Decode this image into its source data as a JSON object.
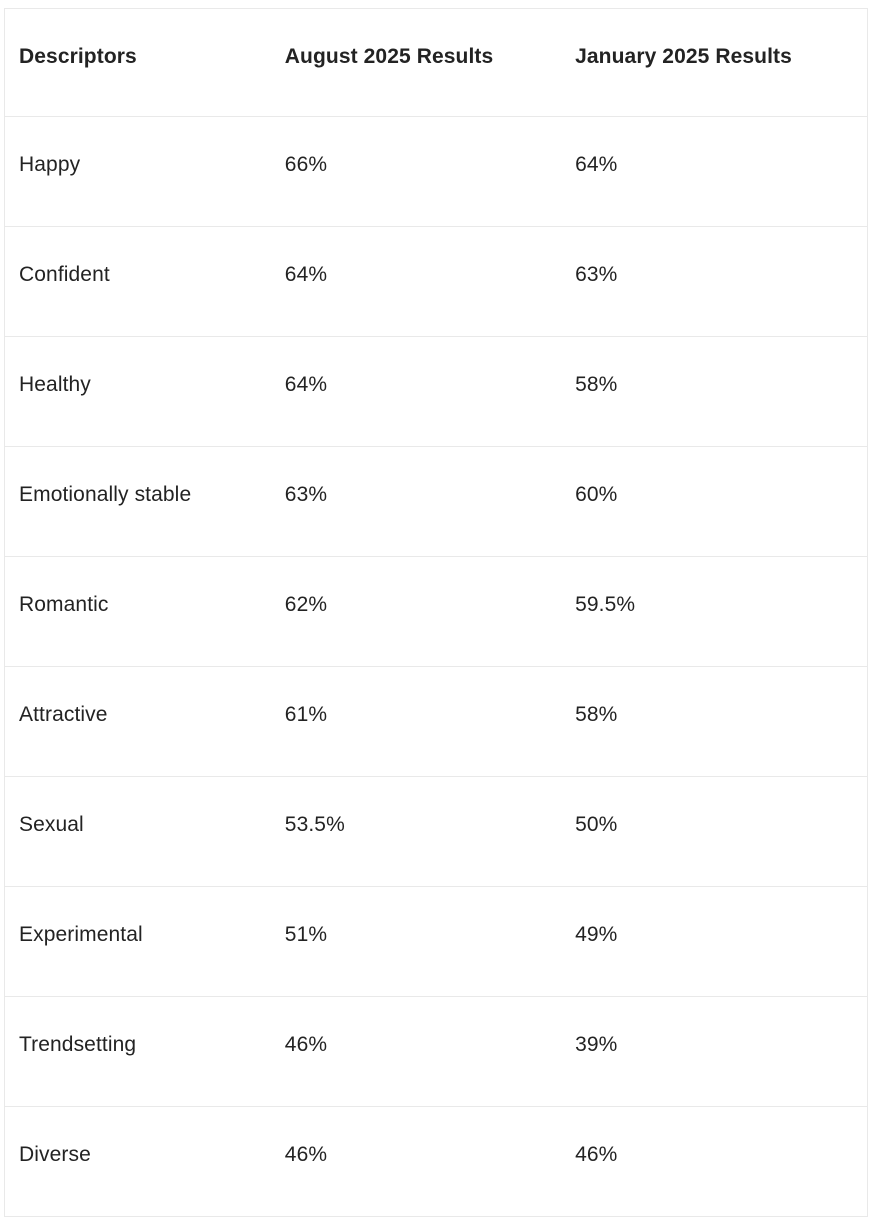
{
  "colors": {
    "text": "#232323",
    "border": "#e9e9e9",
    "background": "#ffffff"
  },
  "table": {
    "columns": [
      "Descriptors",
      "August 2025 Results",
      "January 2025 Results"
    ],
    "rows": [
      [
        "Happy",
        "66%",
        "64%"
      ],
      [
        "Confident",
        "64%",
        "63%"
      ],
      [
        "Healthy",
        "64%",
        "58%"
      ],
      [
        "Emotionally stable",
        "63%",
        "60%"
      ],
      [
        "Romantic",
        "62%",
        "59.5%"
      ],
      [
        "Attractive",
        "61%",
        "58%"
      ],
      [
        "Sexual",
        "53.5%",
        "50%"
      ],
      [
        "Experimental",
        "51%",
        "49%"
      ],
      [
        "Trendsetting",
        "46%",
        "39%"
      ],
      [
        "Diverse",
        "46%",
        "46%"
      ]
    ]
  },
  "chart_data": {
    "type": "table",
    "categories": [
      "Happy",
      "Confident",
      "Healthy",
      "Emotionally stable",
      "Romantic",
      "Attractive",
      "Sexual",
      "Experimental",
      "Trendsetting",
      "Diverse"
    ],
    "series": [
      {
        "name": "August 2025 Results",
        "values": [
          66,
          64,
          64,
          63,
          62,
          61,
          53.5,
          51,
          46,
          46
        ]
      },
      {
        "name": "January 2025 Results",
        "values": [
          64,
          63,
          58,
          60,
          59.5,
          58,
          50,
          49,
          39,
          46
        ]
      }
    ],
    "unit": "%",
    "first_column_label": "Descriptors"
  }
}
